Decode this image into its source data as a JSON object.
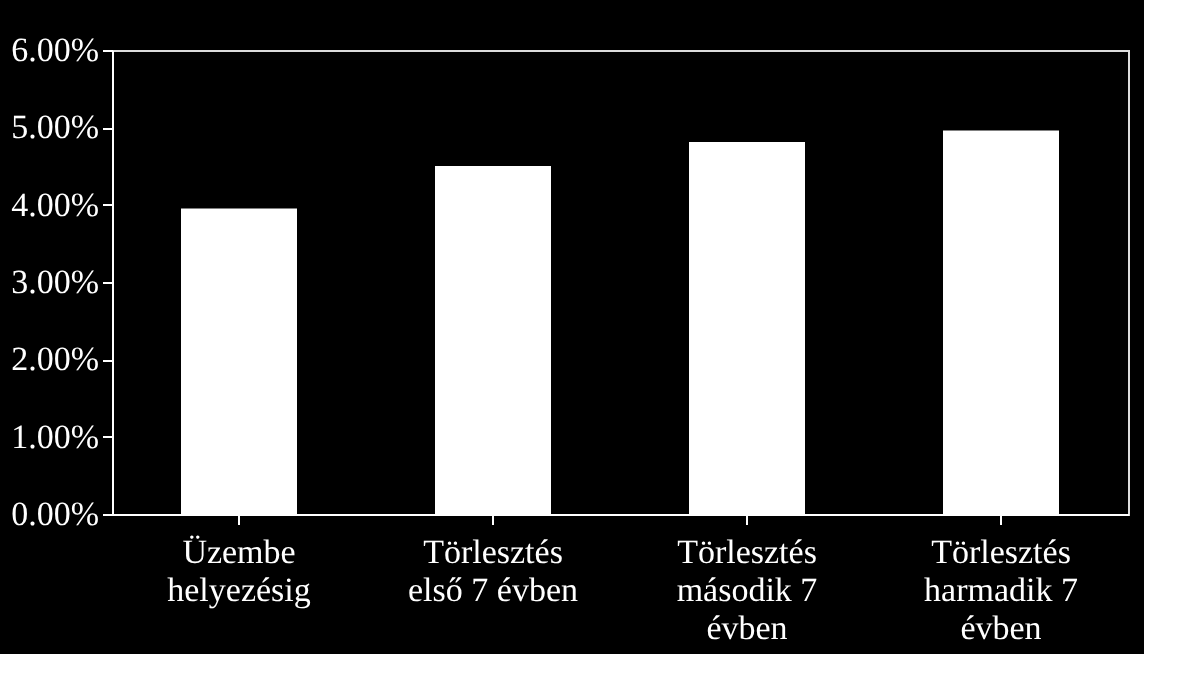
{
  "chart_data": {
    "type": "bar",
    "categories": [
      "Üzembe\nhelyezésig",
      "Törlesztés\nelső 7 évben",
      "Törlesztés\nmásodik 7\névben",
      "Törlesztés\nharmadik 7\névben"
    ],
    "values": [
      3.95,
      4.5,
      4.81,
      4.96
    ],
    "color": "#ffffff",
    "ylim": [
      0,
      6
    ],
    "yticks": [
      {
        "value": 0,
        "label": "0.00%"
      },
      {
        "value": 1,
        "label": "1.00%"
      },
      {
        "value": 2,
        "label": "2.00%"
      },
      {
        "value": 3,
        "label": "3.00%"
      },
      {
        "value": 4,
        "label": "4.00%"
      },
      {
        "value": 5,
        "label": "5.00%"
      },
      {
        "value": 6,
        "label": "6.00%"
      }
    ],
    "grid": false
  }
}
